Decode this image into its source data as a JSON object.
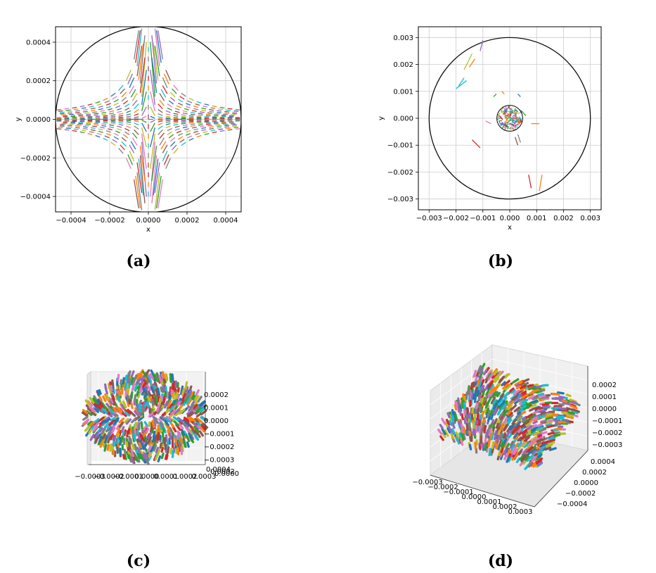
{
  "captions": [
    "(a)",
    "(b)",
    "(c)",
    "(d)"
  ],
  "palette": [
    "#1f77b4",
    "#ff7f0e",
    "#2ca02c",
    "#d62728",
    "#9467bd",
    "#8c564b",
    "#e377c2",
    "#7f7f7f",
    "#bcbd22",
    "#17becf"
  ],
  "chart_data": [
    {
      "type": "line",
      "panel": "a",
      "description_series": "Many short multicolored trajectory segments arranged in a saddle (hyperbolic) flow pattern inside a circle",
      "xlabel": "x",
      "ylabel": "y",
      "xlim": [
        -0.00048,
        0.00048
      ],
      "ylim": [
        -0.00048,
        0.00048
      ],
      "xticks": [
        -0.0004,
        -0.0002,
        0.0,
        0.0002,
        0.0004
      ],
      "xtick_labels": [
        "−0.0004",
        "−0.0002",
        "0.0000",
        "0.0002",
        "0.0004"
      ],
      "yticks": [
        -0.0004,
        -0.0002,
        0.0,
        0.0002,
        0.0004
      ],
      "ytick_labels": [
        "−0.0004",
        "−0.0002",
        "0.0000",
        "0.0002",
        "0.0004"
      ],
      "circle": {
        "cx": 0,
        "cy": 0,
        "r": 0.00048
      },
      "grid": true
    },
    {
      "type": "line",
      "panel": "b",
      "xlabel": "x",
      "ylabel": "y",
      "xlim": [
        -0.0034,
        0.0034
      ],
      "ylim": [
        -0.0034,
        0.0034
      ],
      "xticks": [
        -0.003,
        -0.002,
        -0.001,
        0.0,
        0.001,
        0.002,
        0.003
      ],
      "xtick_labels": [
        "−0.003",
        "−0.002",
        "−0.001",
        "0.000",
        "0.001",
        "0.002",
        "0.003"
      ],
      "yticks": [
        -0.003,
        -0.002,
        -0.001,
        0.0,
        0.001,
        0.002,
        0.003
      ],
      "ytick_labels": [
        "−0.003",
        "−0.002",
        "−0.001",
        "0.000",
        "0.001",
        "0.002",
        "0.003"
      ],
      "circles": [
        {
          "cx": 0,
          "cy": 0,
          "r": 0.003
        },
        {
          "cx": 0,
          "cy": 0,
          "r": 0.00048
        }
      ],
      "grid": true
    },
    {
      "type": "scatter",
      "panel": "c",
      "projection": "3d-side-view",
      "xtick_labels": [
        "−0.0003",
        "−0.0002",
        "−0.0001",
        "0.0000",
        "0.0001",
        "0.0002",
        "0.0003"
      ],
      "ztick_labels": [
        "0.0002",
        "0.0001",
        "0.0000",
        "−0.0001",
        "−0.0002",
        "−0.0003"
      ],
      "depth_tick_labels": [
        "0.0004",
        "0.0002",
        "0.0000"
      ]
    },
    {
      "type": "scatter",
      "panel": "d",
      "projection": "3d",
      "xtick_labels": [
        "−0.0003",
        "−0.0002",
        "−0.0001",
        "0.0000",
        "0.0001",
        "0.0002",
        "0.0003"
      ],
      "ytick_labels": [
        "0.0004",
        "0.0002",
        "0.0000",
        "−0.0002",
        "−0.0004"
      ],
      "ztick_labels": [
        "0.0002",
        "0.0001",
        "0.0000",
        "−0.0001",
        "−0.0002",
        "−0.0003"
      ]
    }
  ]
}
